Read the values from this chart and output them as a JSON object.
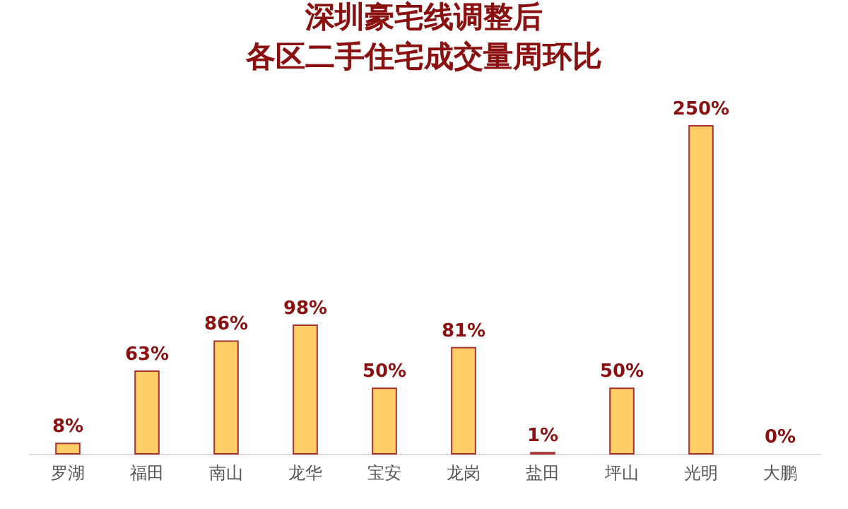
{
  "chart_data": {
    "type": "bar",
    "title": [
      "深圳豪宅线调整后",
      "各区二手住宅成交量周环比"
    ],
    "categories": [
      "罗湖",
      "福田",
      "南山",
      "龙华",
      "宝安",
      "龙岗",
      "盐田",
      "坪山",
      "光明",
      "大鹏"
    ],
    "values": [
      8,
      63,
      86,
      98,
      50,
      81,
      1,
      50,
      250,
      0
    ],
    "value_labels": [
      "8%",
      "63%",
      "86%",
      "98%",
      "50%",
      "81%",
      "1%",
      "50%",
      "250%",
      "0%"
    ],
    "color": "#ffcc66",
    "tick_labels": "x",
    "grid": false
  }
}
